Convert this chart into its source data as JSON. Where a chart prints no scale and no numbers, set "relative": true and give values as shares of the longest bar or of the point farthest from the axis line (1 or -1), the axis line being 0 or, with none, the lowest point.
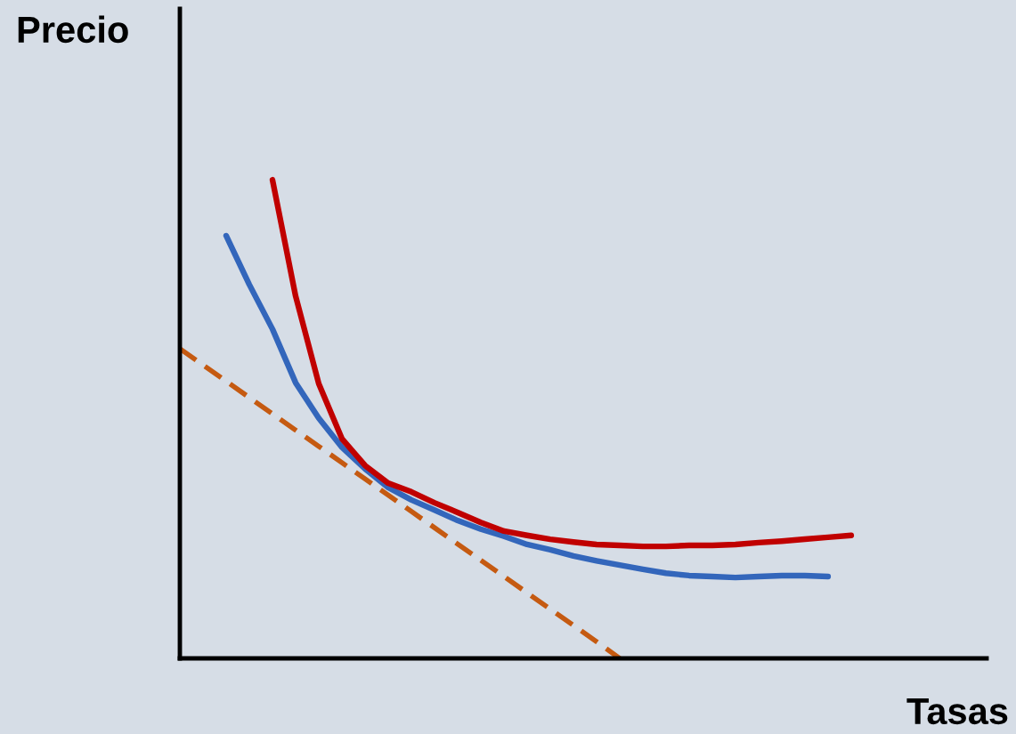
{
  "chart_data": {
    "type": "line",
    "relative": true,
    "xlabel": "Tasas",
    "ylabel": "Precio",
    "grid": false,
    "marker": "none",
    "categories": [
      null,
      null,
      null,
      null,
      null,
      null,
      null,
      null,
      null,
      null,
      null,
      null,
      null,
      null,
      null,
      null,
      null,
      null,
      null,
      null,
      null,
      null,
      null,
      null,
      null,
      null,
      null,
      null,
      null,
      null,
      null,
      null,
      null,
      null,
      null
    ],
    "series": [
      {
        "color": "#c55a11",
        "line_style": "dashed",
        "values": [
          0.647,
          0.613,
          0.579,
          0.545,
          0.511,
          0.477,
          0.443,
          0.409,
          0.375,
          0.341,
          0.307,
          0.273,
          0.239,
          0.205,
          0.171,
          0.137,
          0.103,
          0.069,
          0.035,
          0,
          null,
          null,
          null,
          null,
          null,
          null,
          null,
          null,
          null,
          null,
          null,
          null,
          null,
          null,
          null
        ]
      },
      {
        "color": "#3366bb",
        "line_style": "solid",
        "values": [
          null,
          null,
          0.883,
          0.781,
          0.688,
          0.576,
          0.502,
          0.441,
          0.396,
          0.357,
          0.331,
          0.31,
          0.288,
          0.27,
          0.255,
          0.238,
          0.227,
          0.214,
          0.204,
          0.195,
          0.186,
          0.178,
          0.173,
          0.171,
          0.169,
          0.171,
          0.173,
          0.173,
          0.171,
          null,
          null,
          null,
          null,
          null,
          null
        ]
      },
      {
        "color": "#c00000",
        "line_style": "solid",
        "values": [
          null,
          null,
          null,
          null,
          1,
          0.757,
          0.574,
          0.459,
          0.403,
          0.366,
          0.348,
          0.325,
          0.305,
          0.284,
          0.266,
          0.257,
          0.249,
          0.243,
          0.238,
          0.236,
          0.234,
          0.234,
          0.236,
          0.236,
          0.238,
          0.242,
          0.245,
          0.249,
          0.253,
          0.257,
          null,
          null,
          null,
          null,
          null
        ]
      }
    ]
  }
}
